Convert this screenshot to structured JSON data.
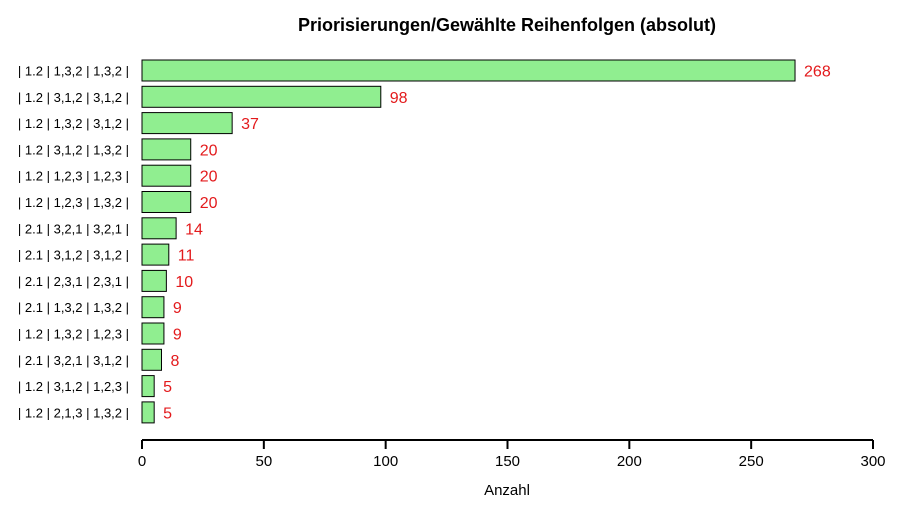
{
  "chart_data": {
    "type": "bar",
    "orientation": "horizontal",
    "title": "Priorisierungen/Gewählte Reihenfolgen (absolut)",
    "xlabel": "Anzahl",
    "ylabel": "",
    "xlim": [
      0,
      300
    ],
    "xticks": [
      0,
      50,
      100,
      150,
      200,
      250,
      300
    ],
    "categories": [
      "| 1.2 | 1,3,2 | 1,3,2 |",
      "| 1.2 | 3,1,2 | 3,1,2 |",
      "| 1.2 | 1,3,2 | 3,1,2 |",
      "| 1.2 | 3,1,2 | 1,3,2 |",
      "| 1.2 | 1,2,3 | 1,2,3 |",
      "| 1.2 | 1,2,3 | 1,3,2 |",
      "| 2.1 | 3,2,1 | 3,2,1 |",
      "| 2.1 | 3,1,2 | 3,1,2 |",
      "| 2.1 | 2,3,1 | 2,3,1 |",
      "| 2.1 | 1,3,2 | 1,3,2 |",
      "| 1.2 | 1,3,2 | 1,2,3 |",
      "| 2.1 | 3,2,1 | 3,1,2 |",
      "| 1.2 | 3,1,2 | 1,2,3 |",
      "| 1.2 | 2,1,3 | 1,3,2 |"
    ],
    "values": [
      268,
      98,
      37,
      20,
      20,
      20,
      14,
      11,
      10,
      9,
      9,
      8,
      5,
      5
    ],
    "bar_color": "#90ee90",
    "label_color": "#e31a1c",
    "grid": false,
    "legend": "none"
  }
}
